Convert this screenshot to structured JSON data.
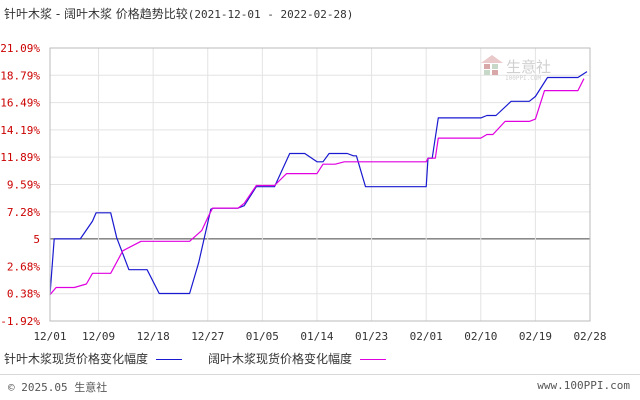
{
  "title": {
    "main": "针叶木浆 - 阔叶木浆 价格趋势比较",
    "range": "(2021-12-01 - 2022-02-28)"
  },
  "watermark": {
    "text": "生意社",
    "url": "100PPI.COM"
  },
  "colors": {
    "series1": "#1a1ad0",
    "series2": "#e000e0",
    "axis": "#bbbbbb",
    "grid": "#e3e3e3",
    "ytick": "#cc0000",
    "baseline": "#444444"
  },
  "chart_data": {
    "type": "line",
    "y_ticks": [
      "21.09%",
      "18.79%",
      "16.49%",
      "14.19%",
      "11.89%",
      "9.59%",
      "7.28%",
      "5",
      "2.68%",
      "0.38%",
      "-1.92%"
    ],
    "y_tick_values": [
      21.09,
      18.79,
      16.49,
      14.19,
      11.89,
      9.59,
      7.28,
      5,
      2.68,
      0.38,
      -1.92
    ],
    "ylim": [
      -1.92,
      21.09
    ],
    "baseline": 5,
    "x_ticks": [
      "12/01",
      "12/09",
      "12/18",
      "12/27",
      "01/05",
      "01/14",
      "01/23",
      "02/01",
      "02/10",
      "02/19",
      "02/28"
    ],
    "x_tick_days": [
      0,
      8,
      17,
      26,
      35,
      44,
      53,
      62,
      71,
      80,
      89
    ],
    "xlim": [
      0,
      89
    ],
    "series": [
      {
        "name": "针叶木浆现货价格变化幅度",
        "points": [
          [
            0,
            0.3
          ],
          [
            0.7,
            5.0
          ],
          [
            4.5,
            5.0
          ],
          [
            5,
            5.0
          ],
          [
            7,
            6.5
          ],
          [
            7.6,
            7.2
          ],
          [
            10,
            7.2
          ],
          [
            11,
            5.1
          ],
          [
            13,
            2.4
          ],
          [
            16,
            2.4
          ],
          [
            18,
            0.4
          ],
          [
            23,
            0.4
          ],
          [
            24.5,
            3.0
          ],
          [
            26.5,
            7.5
          ],
          [
            27,
            7.6
          ],
          [
            31,
            7.6
          ],
          [
            32,
            7.8
          ],
          [
            34,
            9.4
          ],
          [
            37,
            9.4
          ],
          [
            39.5,
            12.2
          ],
          [
            42,
            12.2
          ],
          [
            44,
            11.5
          ],
          [
            45,
            11.5
          ],
          [
            46,
            12.2
          ],
          [
            49,
            12.2
          ],
          [
            50,
            12.0
          ],
          [
            50.5,
            12.0
          ],
          [
            52,
            9.4
          ],
          [
            57,
            9.4
          ],
          [
            61,
            9.4
          ],
          [
            62,
            9.4
          ],
          [
            62.3,
            11.8
          ],
          [
            63,
            11.8
          ],
          [
            64,
            15.2
          ],
          [
            71,
            15.2
          ],
          [
            72,
            15.4
          ],
          [
            73.5,
            15.4
          ],
          [
            76,
            16.6
          ],
          [
            79,
            16.6
          ],
          [
            80,
            17.0
          ],
          [
            82,
            18.6
          ],
          [
            87,
            18.6
          ],
          [
            88.5,
            19.1
          ]
        ]
      },
      {
        "name": "阔叶木浆现货价格变化幅度",
        "points": [
          [
            0,
            0.3
          ],
          [
            1,
            0.9
          ],
          [
            4,
            0.9
          ],
          [
            6,
            1.2
          ],
          [
            7,
            2.1
          ],
          [
            10,
            2.1
          ],
          [
            12,
            4.0
          ],
          [
            15,
            4.8
          ],
          [
            22,
            4.8
          ],
          [
            23,
            4.8
          ],
          [
            25,
            5.7
          ],
          [
            26,
            6.8
          ],
          [
            26.8,
            7.6
          ],
          [
            31,
            7.6
          ],
          [
            32,
            8.0
          ],
          [
            34,
            9.5
          ],
          [
            37,
            9.5
          ],
          [
            39,
            10.5
          ],
          [
            44,
            10.5
          ],
          [
            45,
            11.3
          ],
          [
            47,
            11.3
          ],
          [
            48.5,
            11.5
          ],
          [
            62,
            11.5
          ],
          [
            62.3,
            11.8
          ],
          [
            63.5,
            11.8
          ],
          [
            64,
            13.5
          ],
          [
            71,
            13.5
          ],
          [
            72,
            13.8
          ],
          [
            73,
            13.8
          ],
          [
            75,
            14.9
          ],
          [
            79,
            14.9
          ],
          [
            80,
            15.1
          ],
          [
            81.5,
            17.5
          ],
          [
            87,
            17.5
          ],
          [
            88,
            18.5
          ]
        ]
      }
    ]
  },
  "footer": {
    "copyright": "© 2025.05 生意社",
    "website": "www.100PPI.com"
  }
}
